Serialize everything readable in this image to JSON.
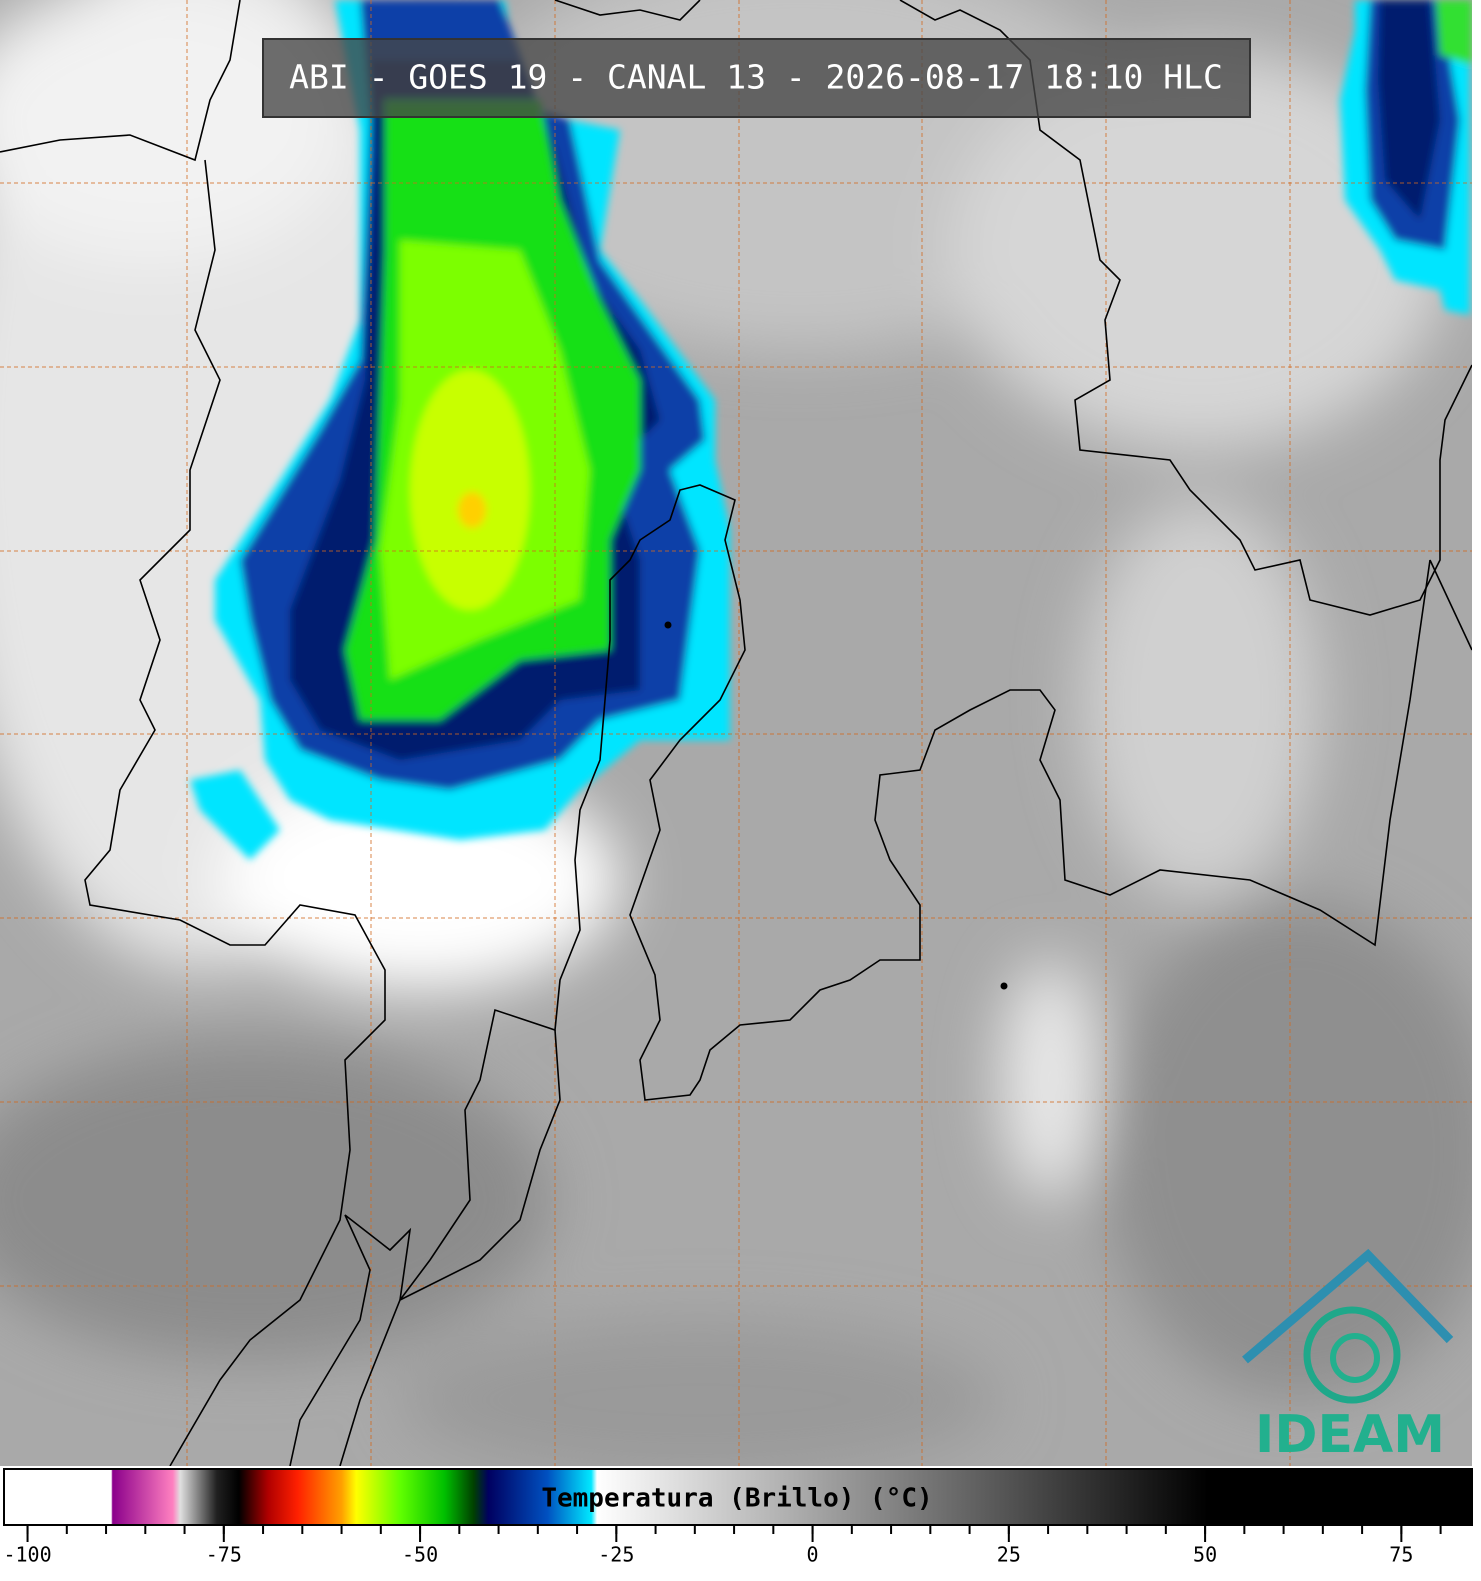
{
  "title": "ABI - GOES 19 - CANAL 13 - 2026-08-17 18:10 HLC",
  "colorbar": {
    "label": "Temperatura (Brillo) (°C)",
    "range": [
      -103,
      84
    ],
    "ticks": [
      -100,
      -75,
      -50,
      -25,
      0,
      25,
      50,
      75
    ],
    "minor_tick_step": 5
  },
  "logo": "IDEAM"
}
